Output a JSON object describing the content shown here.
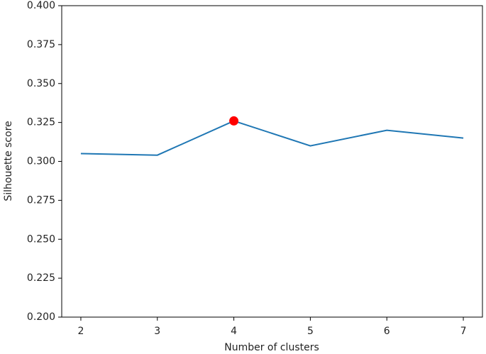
{
  "chart_data": {
    "type": "line",
    "x_label": "Number of clusters",
    "y_label": "Silhouette score",
    "x": [
      2,
      3,
      4,
      5,
      6,
      7
    ],
    "series": [
      {
        "color": "#1f77b4",
        "values": [
          0.305,
          0.304,
          0.326,
          0.31,
          0.32,
          0.315
        ]
      }
    ],
    "highlight": {
      "color": "#ff0000",
      "x": [
        4
      ],
      "values": [
        0.326
      ]
    },
    "xlim": [
      1.75,
      7.25
    ],
    "xticks": [
      2,
      3,
      4,
      5,
      6,
      7
    ],
    "ylim": [
      0.2,
      0.4
    ],
    "yticks": [
      {
        "value": 0.2,
        "label": "0.200"
      },
      {
        "value": 0.225,
        "label": "0.225"
      },
      {
        "value": 0.25,
        "label": "0.250"
      },
      {
        "value": 0.275,
        "label": "0.275"
      },
      {
        "value": 0.3,
        "label": "0.300"
      },
      {
        "value": 0.325,
        "label": "0.325"
      },
      {
        "value": 0.35,
        "label": "0.350"
      },
      {
        "value": 0.375,
        "label": "0.375"
      },
      {
        "value": 0.4,
        "label": "0.400"
      }
    ],
    "grid": false
  }
}
